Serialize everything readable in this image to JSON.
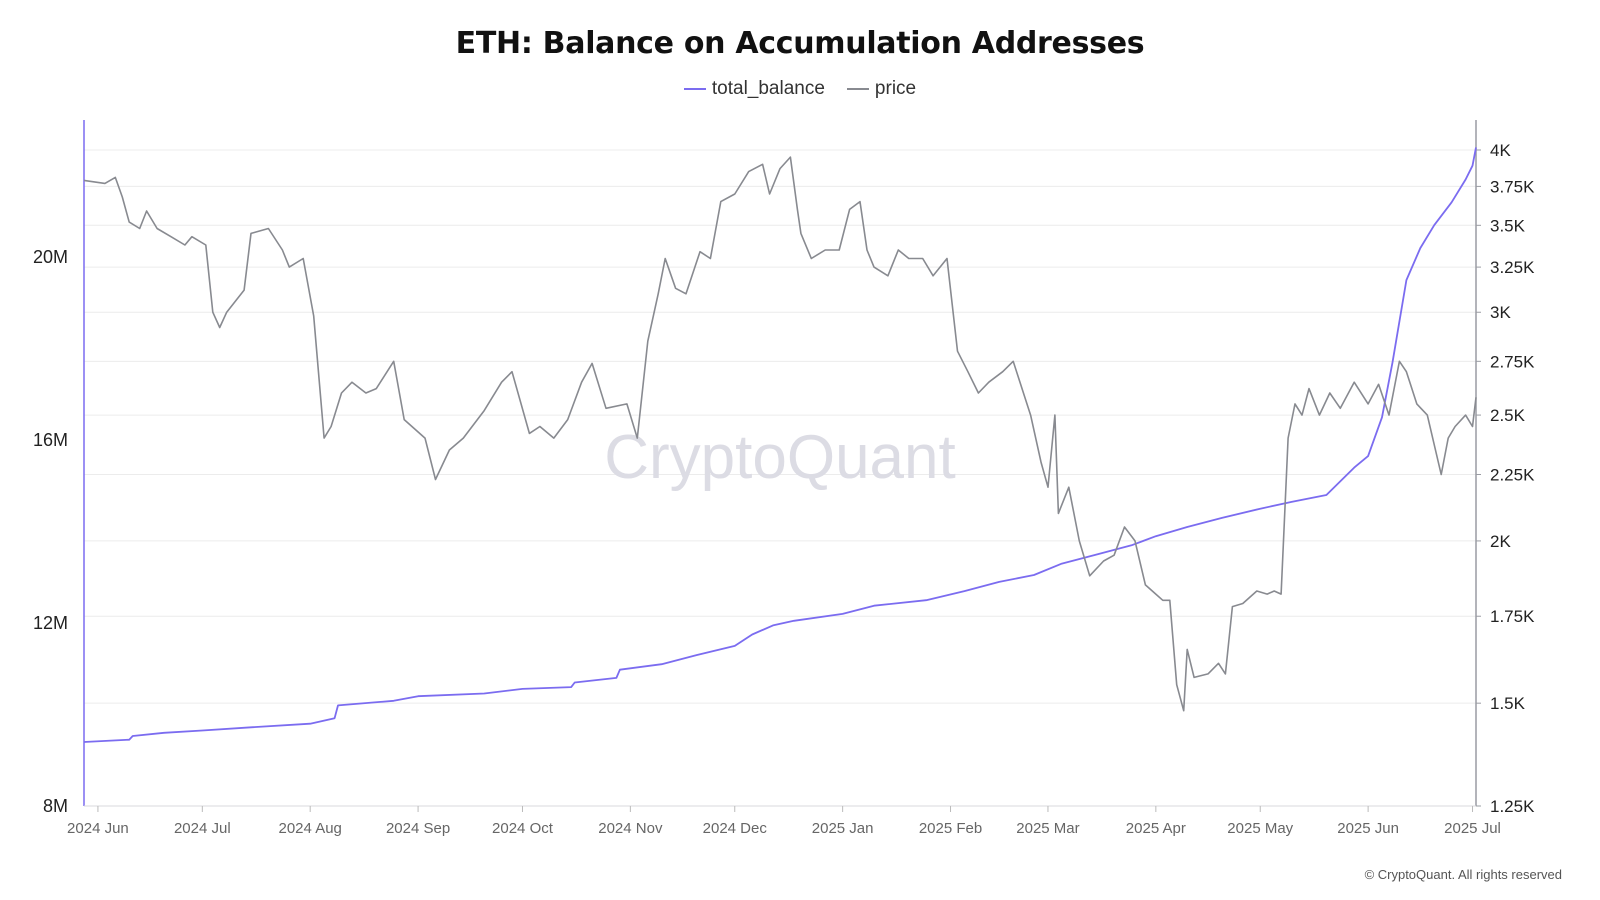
{
  "title": "ETH: Balance on Accumulation Addresses",
  "legend": [
    {
      "label": "total_balance",
      "color": "#7b6cf0"
    },
    {
      "label": "price",
      "color": "#888a90"
    }
  ],
  "watermark": "CryptoQuant",
  "copyright": "© CryptoQuant. All rights reserved",
  "colors": {
    "total_balance": "#7b6cf0",
    "price": "#888a90",
    "grid": "#ececec"
  },
  "chart_data": {
    "type": "line",
    "title": "ETH: Balance on Accumulation Addresses",
    "xlabel": "",
    "x_range": [
      "2024-05-28",
      "2025-07-02"
    ],
    "x_ticks": [
      {
        "date": "2024-06-01",
        "label": "2024 Jun"
      },
      {
        "date": "2024-07-01",
        "label": "2024 Jul"
      },
      {
        "date": "2024-08-01",
        "label": "2024 Aug"
      },
      {
        "date": "2024-09-01",
        "label": "2024 Sep"
      },
      {
        "date": "2024-10-01",
        "label": "2024 Oct"
      },
      {
        "date": "2024-11-01",
        "label": "2024 Nov"
      },
      {
        "date": "2024-12-01",
        "label": "2024 Dec"
      },
      {
        "date": "2025-01-01",
        "label": "2025 Jan"
      },
      {
        "date": "2025-02-01",
        "label": "2025 Feb"
      },
      {
        "date": "2025-03-01",
        "label": "2025 Mar"
      },
      {
        "date": "2025-04-01",
        "label": "2025 Apr"
      },
      {
        "date": "2025-05-01",
        "label": "2025 May"
      },
      {
        "date": "2025-06-01",
        "label": "2025 Jun"
      },
      {
        "date": "2025-07-01",
        "label": "2025 Jul"
      }
    ],
    "y_left": {
      "ylabel": "",
      "ylim": [
        8000000,
        23000000
      ],
      "ticks": [
        {
          "v": 8000000,
          "label": "8M"
        },
        {
          "v": 12000000,
          "label": "12M"
        },
        {
          "v": 16000000,
          "label": "16M"
        },
        {
          "v": 20000000,
          "label": "20M"
        }
      ]
    },
    "y_right": {
      "ylabel": "",
      "scale": "log",
      "ylim": [
        1250,
        4000
      ],
      "ticks": [
        {
          "v": 1250,
          "label": "1.25K"
        },
        {
          "v": 1500,
          "label": "1.5K"
        },
        {
          "v": 1750,
          "label": "1.75K"
        },
        {
          "v": 2000,
          "label": "2K"
        },
        {
          "v": 2250,
          "label": "2.25K"
        },
        {
          "v": 2500,
          "label": "2.5K"
        },
        {
          "v": 2750,
          "label": "2.75K"
        },
        {
          "v": 3000,
          "label": "3K"
        },
        {
          "v": 3250,
          "label": "3.25K"
        },
        {
          "v": 3500,
          "label": "3.5K"
        },
        {
          "v": 3750,
          "label": "3.75K"
        },
        {
          "v": 4000,
          "label": "4K"
        }
      ]
    },
    "grid": true,
    "legend_position": "top-center",
    "series": [
      {
        "name": "total_balance",
        "axis": "left",
        "color": "#7b6cf0",
        "points": [
          [
            "2024-05-28",
            9400000
          ],
          [
            "2024-06-10",
            9450000
          ],
          [
            "2024-06-11",
            9530000
          ],
          [
            "2024-06-20",
            9600000
          ],
          [
            "2024-07-01",
            9650000
          ],
          [
            "2024-07-15",
            9720000
          ],
          [
            "2024-08-01",
            9800000
          ],
          [
            "2024-08-08",
            9920000
          ],
          [
            "2024-08-09",
            10200000
          ],
          [
            "2024-08-25",
            10300000
          ],
          [
            "2024-09-01",
            10400000
          ],
          [
            "2024-09-20",
            10460000
          ],
          [
            "2024-10-01",
            10560000
          ],
          [
            "2024-10-15",
            10600000
          ],
          [
            "2024-10-16",
            10700000
          ],
          [
            "2024-10-28",
            10800000
          ],
          [
            "2024-10-29",
            10980000
          ],
          [
            "2024-11-10",
            11100000
          ],
          [
            "2024-11-20",
            11300000
          ],
          [
            "2024-12-01",
            11500000
          ],
          [
            "2024-12-06",
            11750000
          ],
          [
            "2024-12-12",
            11950000
          ],
          [
            "2024-12-18",
            12050000
          ],
          [
            "2025-01-01",
            12200000
          ],
          [
            "2025-01-10",
            12380000
          ],
          [
            "2025-01-25",
            12500000
          ],
          [
            "2025-02-05",
            12700000
          ],
          [
            "2025-02-15",
            12900000
          ],
          [
            "2025-02-25",
            13050000
          ],
          [
            "2025-03-05",
            13300000
          ],
          [
            "2025-03-15",
            13500000
          ],
          [
            "2025-03-25",
            13700000
          ],
          [
            "2025-04-01",
            13900000
          ],
          [
            "2025-04-10",
            14100000
          ],
          [
            "2025-04-20",
            14300000
          ],
          [
            "2025-05-01",
            14500000
          ],
          [
            "2025-05-10",
            14650000
          ],
          [
            "2025-05-20",
            14800000
          ],
          [
            "2025-05-28",
            15400000
          ],
          [
            "2025-06-01",
            15650000
          ],
          [
            "2025-06-05",
            16500000
          ],
          [
            "2025-06-08",
            17700000
          ],
          [
            "2025-06-12",
            19500000
          ],
          [
            "2025-06-16",
            20200000
          ],
          [
            "2025-06-20",
            20700000
          ],
          [
            "2025-06-25",
            21200000
          ],
          [
            "2025-06-29",
            21700000
          ],
          [
            "2025-07-01",
            22000000
          ],
          [
            "2025-07-02",
            22400000
          ]
        ]
      },
      {
        "name": "price",
        "axis": "right",
        "color": "#888a90",
        "points": [
          [
            "2024-05-28",
            3790
          ],
          [
            "2024-06-03",
            3770
          ],
          [
            "2024-06-06",
            3810
          ],
          [
            "2024-06-08",
            3680
          ],
          [
            "2024-06-10",
            3520
          ],
          [
            "2024-06-13",
            3480
          ],
          [
            "2024-06-15",
            3590
          ],
          [
            "2024-06-18",
            3480
          ],
          [
            "2024-06-22",
            3430
          ],
          [
            "2024-06-26",
            3380
          ],
          [
            "2024-06-28",
            3430
          ],
          [
            "2024-07-02",
            3380
          ],
          [
            "2024-07-04",
            3000
          ],
          [
            "2024-07-06",
            2920
          ],
          [
            "2024-07-08",
            3000
          ],
          [
            "2024-07-13",
            3120
          ],
          [
            "2024-07-15",
            3450
          ],
          [
            "2024-07-20",
            3480
          ],
          [
            "2024-07-24",
            3350
          ],
          [
            "2024-07-26",
            3250
          ],
          [
            "2024-07-30",
            3300
          ],
          [
            "2024-08-02",
            2980
          ],
          [
            "2024-08-05",
            2400
          ],
          [
            "2024-08-07",
            2450
          ],
          [
            "2024-08-10",
            2600
          ],
          [
            "2024-08-13",
            2650
          ],
          [
            "2024-08-17",
            2600
          ],
          [
            "2024-08-20",
            2620
          ],
          [
            "2024-08-25",
            2750
          ],
          [
            "2024-08-28",
            2480
          ],
          [
            "2024-09-03",
            2400
          ],
          [
            "2024-09-06",
            2230
          ],
          [
            "2024-09-10",
            2350
          ],
          [
            "2024-09-14",
            2400
          ],
          [
            "2024-09-20",
            2520
          ],
          [
            "2024-09-25",
            2650
          ],
          [
            "2024-09-28",
            2700
          ],
          [
            "2024-10-03",
            2420
          ],
          [
            "2024-10-06",
            2450
          ],
          [
            "2024-10-10",
            2400
          ],
          [
            "2024-10-14",
            2480
          ],
          [
            "2024-10-18",
            2650
          ],
          [
            "2024-10-21",
            2740
          ],
          [
            "2024-10-25",
            2530
          ],
          [
            "2024-10-31",
            2550
          ],
          [
            "2024-11-03",
            2400
          ],
          [
            "2024-11-06",
            2850
          ],
          [
            "2024-11-09",
            3100
          ],
          [
            "2024-11-11",
            3300
          ],
          [
            "2024-11-14",
            3130
          ],
          [
            "2024-11-17",
            3100
          ],
          [
            "2024-11-21",
            3340
          ],
          [
            "2024-11-24",
            3300
          ],
          [
            "2024-11-27",
            3650
          ],
          [
            "2024-12-01",
            3700
          ],
          [
            "2024-12-05",
            3850
          ],
          [
            "2024-12-09",
            3900
          ],
          [
            "2024-12-11",
            3700
          ],
          [
            "2024-12-14",
            3870
          ],
          [
            "2024-12-17",
            3950
          ],
          [
            "2024-12-19",
            3600
          ],
          [
            "2024-12-20",
            3450
          ],
          [
            "2024-12-23",
            3300
          ],
          [
            "2024-12-27",
            3350
          ],
          [
            "2024-12-31",
            3350
          ],
          [
            "2025-01-03",
            3600
          ],
          [
            "2025-01-06",
            3650
          ],
          [
            "2025-01-08",
            3350
          ],
          [
            "2025-01-10",
            3250
          ],
          [
            "2025-01-14",
            3200
          ],
          [
            "2025-01-17",
            3350
          ],
          [
            "2025-01-20",
            3300
          ],
          [
            "2025-01-24",
            3300
          ],
          [
            "2025-01-27",
            3200
          ],
          [
            "2025-01-31",
            3300
          ],
          [
            "2025-02-03",
            2800
          ],
          [
            "2025-02-06",
            2700
          ],
          [
            "2025-02-09",
            2600
          ],
          [
            "2025-02-12",
            2650
          ],
          [
            "2025-02-16",
            2700
          ],
          [
            "2025-02-19",
            2750
          ],
          [
            "2025-02-24",
            2500
          ],
          [
            "2025-02-27",
            2300
          ],
          [
            "2025-03-01",
            2200
          ],
          [
            "2025-03-03",
            2500
          ],
          [
            "2025-03-04",
            2100
          ],
          [
            "2025-03-07",
            2200
          ],
          [
            "2025-03-10",
            2000
          ],
          [
            "2025-03-13",
            1880
          ],
          [
            "2025-03-17",
            1930
          ],
          [
            "2025-03-20",
            1950
          ],
          [
            "2025-03-23",
            2050
          ],
          [
            "2025-03-26",
            2000
          ],
          [
            "2025-03-29",
            1850
          ],
          [
            "2025-04-01",
            1820
          ],
          [
            "2025-04-03",
            1800
          ],
          [
            "2025-04-05",
            1800
          ],
          [
            "2025-04-07",
            1550
          ],
          [
            "2025-04-09",
            1480
          ],
          [
            "2025-04-10",
            1650
          ],
          [
            "2025-04-12",
            1570
          ],
          [
            "2025-04-16",
            1580
          ],
          [
            "2025-04-19",
            1610
          ],
          [
            "2025-04-21",
            1580
          ],
          [
            "2025-04-23",
            1780
          ],
          [
            "2025-04-26",
            1790
          ],
          [
            "2025-04-30",
            1830
          ],
          [
            "2025-05-03",
            1820
          ],
          [
            "2025-05-05",
            1830
          ],
          [
            "2025-05-07",
            1820
          ],
          [
            "2025-05-09",
            2400
          ],
          [
            "2025-05-11",
            2550
          ],
          [
            "2025-05-13",
            2500
          ],
          [
            "2025-05-15",
            2620
          ],
          [
            "2025-05-18",
            2500
          ],
          [
            "2025-05-21",
            2600
          ],
          [
            "2025-05-24",
            2530
          ],
          [
            "2025-05-28",
            2650
          ],
          [
            "2025-06-01",
            2550
          ],
          [
            "2025-06-04",
            2640
          ],
          [
            "2025-06-07",
            2500
          ],
          [
            "2025-06-10",
            2750
          ],
          [
            "2025-06-12",
            2700
          ],
          [
            "2025-06-15",
            2550
          ],
          [
            "2025-06-18",
            2500
          ],
          [
            "2025-06-22",
            2250
          ],
          [
            "2025-06-24",
            2400
          ],
          [
            "2025-06-26",
            2450
          ],
          [
            "2025-06-29",
            2500
          ],
          [
            "2025-07-01",
            2450
          ],
          [
            "2025-07-02",
            2580
          ]
        ]
      }
    ]
  }
}
